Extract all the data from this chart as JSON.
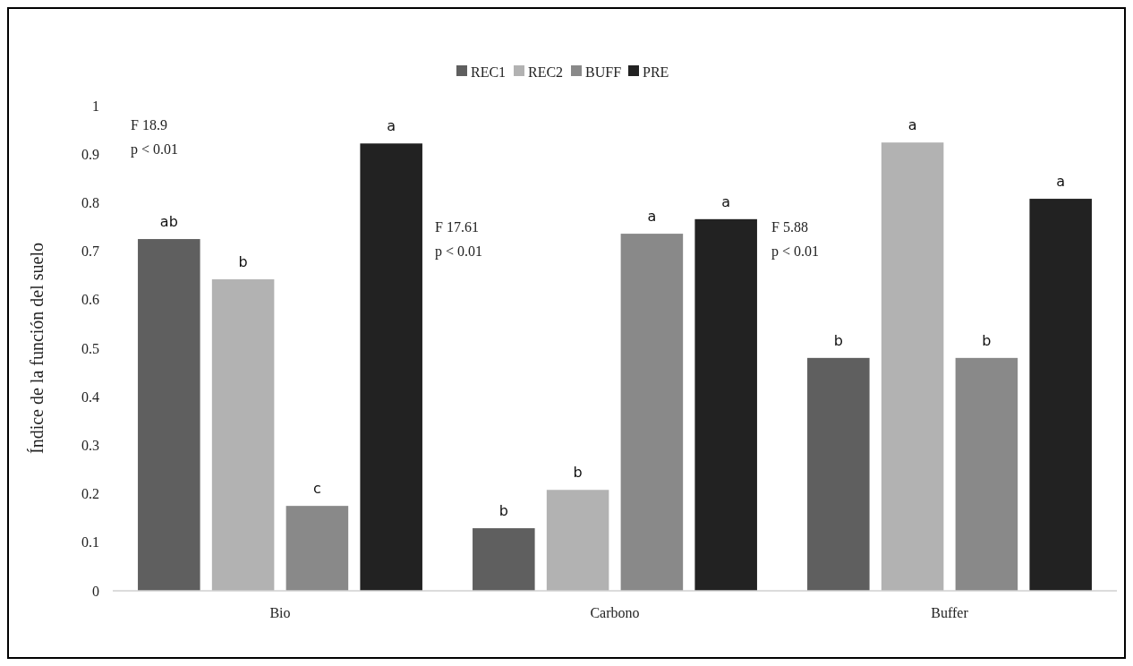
{
  "chart_data": {
    "type": "bar",
    "ylabel": "Índice de la función del suelo",
    "categories": [
      "Bio",
      "Carbono",
      "Buffer"
    ],
    "series": [
      {
        "name": "REC1",
        "color": "#5f5f5f",
        "values": [
          0.725,
          0.129,
          0.48
        ]
      },
      {
        "name": "REC2",
        "color": "#b2b2b2",
        "values": [
          0.642,
          0.208,
          0.924
        ]
      },
      {
        "name": "BUFF",
        "color": "#898989",
        "values": [
          0.175,
          0.736,
          0.48
        ]
      },
      {
        "name": "PRE",
        "color": "#222222",
        "values": [
          0.922,
          0.766,
          0.808
        ]
      }
    ],
    "ylim": [
      0,
      1
    ],
    "yticks": [
      0,
      0.1,
      0.2,
      0.3,
      0.4,
      0.5,
      0.6,
      0.7,
      0.8,
      0.9,
      1
    ],
    "grid": false,
    "legend": "top",
    "annotations": [
      "F 18.9\np < 0.01",
      "F 17.61\np < 0.01",
      "F 5.88\np < 0.01",
      "ab",
      "b",
      "c",
      "a",
      "b",
      "b",
      "a",
      "a",
      "b",
      "a",
      "b",
      "a"
    ]
  }
}
